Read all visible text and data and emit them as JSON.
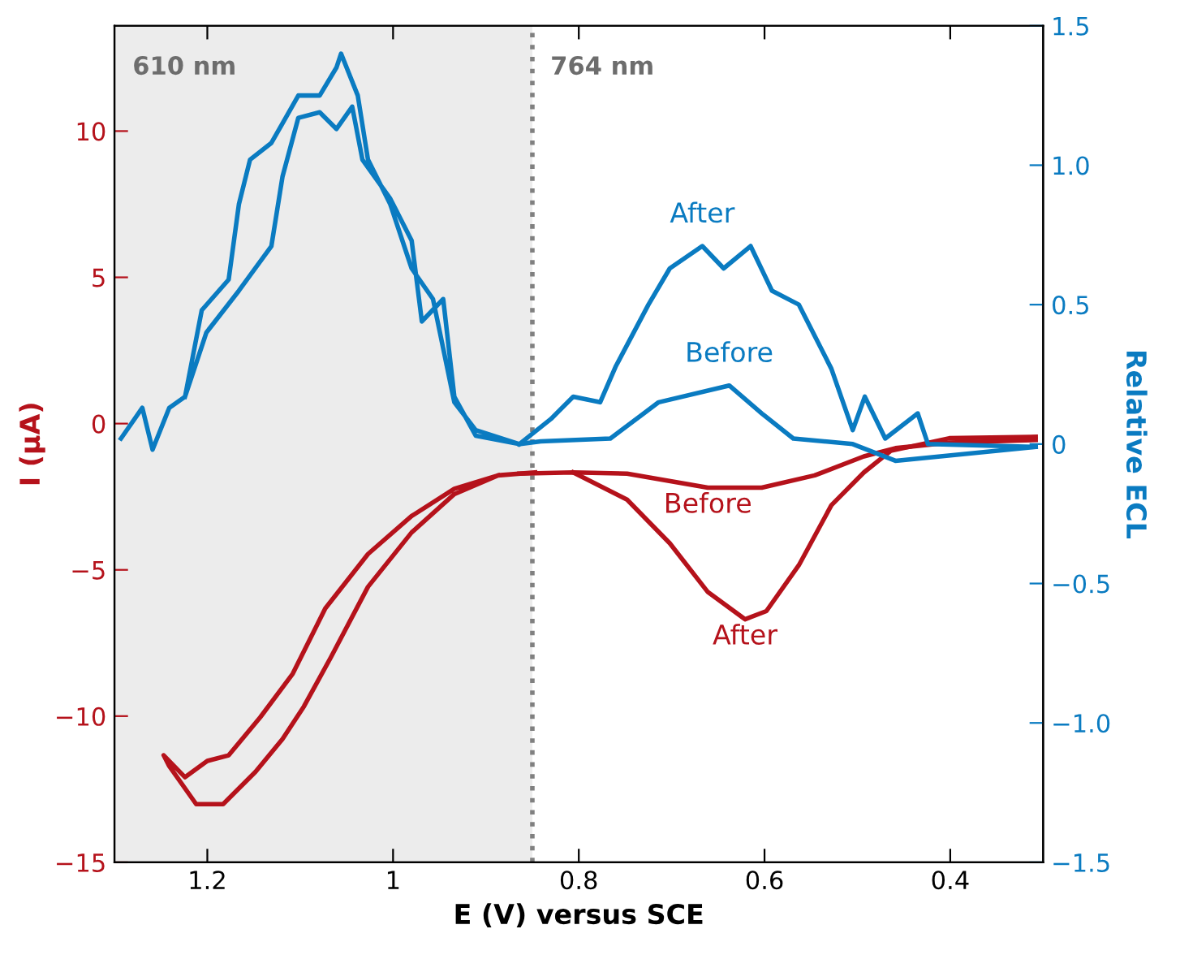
{
  "chart_data": {
    "type": "line",
    "xlabel": "E (V) versus SCE",
    "ylabel": "I (μA)",
    "y2label": "Relative ECL",
    "xlim": [
      1.3,
      0.3
    ],
    "xticks": [
      1.2,
      1,
      0.8,
      0.6,
      0.4
    ],
    "ylim": [
      -15,
      13.6
    ],
    "yticks": [
      {
        "value": -15,
        "label": "−15"
      },
      {
        "value": -10,
        "label": "−10"
      },
      {
        "value": -5,
        "label": "−5"
      },
      0,
      5,
      10
    ],
    "y2lim": [
      -1.5,
      1.5
    ],
    "y2ticks": [
      {
        "value": -1.5,
        "label": "−1.5"
      },
      {
        "value": -1.0,
        "label": "−1.0"
      },
      {
        "value": -0.5,
        "label": "−0.5"
      },
      {
        "value": 0,
        "label": "0"
      },
      {
        "value": 0.5,
        "label": "0.5"
      },
      {
        "value": 1.0,
        "label": "1.0"
      },
      {
        "value": 1.5,
        "label": "1.5"
      }
    ],
    "grid": false,
    "legend": false,
    "marker": "none",
    "line_style": "solid",
    "bands": [
      {
        "axis": "x",
        "from": 1.3,
        "to": 0.85,
        "color": "#ececec"
      }
    ],
    "ref_lines": [
      {
        "axis": "x",
        "value": 0.85,
        "color": "#808080",
        "line_style": "dotted"
      }
    ],
    "annotations": [
      "610 nm",
      "764 nm"
    ],
    "series": [
      {
        "color": "#b5121b",
        "x": [
          0.847,
          0.887,
          0.934,
          0.98,
          1.027,
          1.067,
          1.096,
          1.119,
          1.148,
          1.183,
          1.212,
          1.241,
          1.247,
          1.224,
          1.2,
          1.177,
          1.143,
          1.108,
          1.073,
          1.027,
          0.98,
          0.934,
          0.887
        ],
        "values": [
          -1.67,
          -1.77,
          -2.41,
          -3.72,
          -5.58,
          -7.99,
          -9.67,
          -10.78,
          -11.9,
          -13.01,
          -13.01,
          -11.71,
          -11.34,
          -12.09,
          -11.53,
          -11.34,
          -10.04,
          -8.55,
          -6.32,
          -4.46,
          -3.16,
          -2.23,
          -1.77
        ]
      },
      {
        "name": "Before",
        "color": "#b5121b",
        "x": [
          0.864,
          0.806,
          0.748,
          0.661,
          0.603,
          0.546,
          0.493,
          0.459,
          0.401,
          0.308
        ],
        "values": [
          -1.71,
          -1.67,
          -1.71,
          -2.19,
          -2.19,
          -1.77,
          -1.12,
          -0.84,
          -0.65,
          -0.56
        ]
      },
      {
        "name": "After",
        "color": "#b5121b",
        "x": [
          0.806,
          0.748,
          0.702,
          0.661,
          0.621,
          0.598,
          0.563,
          0.528,
          0.493,
          0.464,
          0.401,
          0.308
        ],
        "values": [
          -1.67,
          -2.6,
          -4.09,
          -5.76,
          -6.69,
          -6.41,
          -4.84,
          -2.79,
          -1.67,
          -0.93,
          -0.5,
          -0.45
        ]
      },
      {
        "color": "#0a7bc1",
        "axis": "y2",
        "x": [
          1.293,
          1.27,
          1.259,
          1.241,
          1.224,
          1.206,
          1.177,
          1.166,
          1.154,
          1.131,
          1.119,
          1.102,
          1.079,
          1.061,
          1.056,
          1.038,
          1.027,
          1.003,
          0.98,
          0.957,
          0.934,
          0.911,
          0.864,
          0.911,
          0.934,
          0.946,
          0.969,
          0.98,
          1.003,
          1.033,
          1.044,
          1.061,
          1.079,
          1.102,
          1.119,
          1.131,
          1.166,
          1.201,
          1.224
        ],
        "values": [
          0.02,
          0.13,
          -0.02,
          0.13,
          0.17,
          0.48,
          0.59,
          0.86,
          1.02,
          1.08,
          1.15,
          1.25,
          1.25,
          1.35,
          1.4,
          1.25,
          1.02,
          0.86,
          0.63,
          0.52,
          0.15,
          0.05,
          0.0,
          0.03,
          0.17,
          0.52,
          0.44,
          0.73,
          0.88,
          1.02,
          1.21,
          1.13,
          1.19,
          1.17,
          0.96,
          0.71,
          0.55,
          0.4,
          0.17
        ]
      },
      {
        "name": "After",
        "color": "#0a7bc1",
        "axis": "y2",
        "x": [
          0.864,
          0.83,
          0.806,
          0.777,
          0.76,
          0.725,
          0.702,
          0.667,
          0.644,
          0.615,
          0.592,
          0.563,
          0.528,
          0.505,
          0.492,
          0.47,
          0.435,
          0.424,
          0.308
        ],
        "values": [
          0.0,
          0.09,
          0.17,
          0.15,
          0.28,
          0.5,
          0.63,
          0.71,
          0.63,
          0.71,
          0.55,
          0.5,
          0.27,
          0.05,
          0.17,
          0.02,
          0.11,
          0.0,
          -0.01
        ]
      },
      {
        "name": "Before",
        "color": "#0a7bc1",
        "axis": "y2",
        "x": [
          0.864,
          0.841,
          0.766,
          0.714,
          0.638,
          0.603,
          0.569,
          0.505,
          0.459,
          0.308
        ],
        "values": [
          0.0,
          0.01,
          0.02,
          0.15,
          0.21,
          0.11,
          0.02,
          0.0,
          -0.06,
          -0.01
        ]
      }
    ]
  }
}
